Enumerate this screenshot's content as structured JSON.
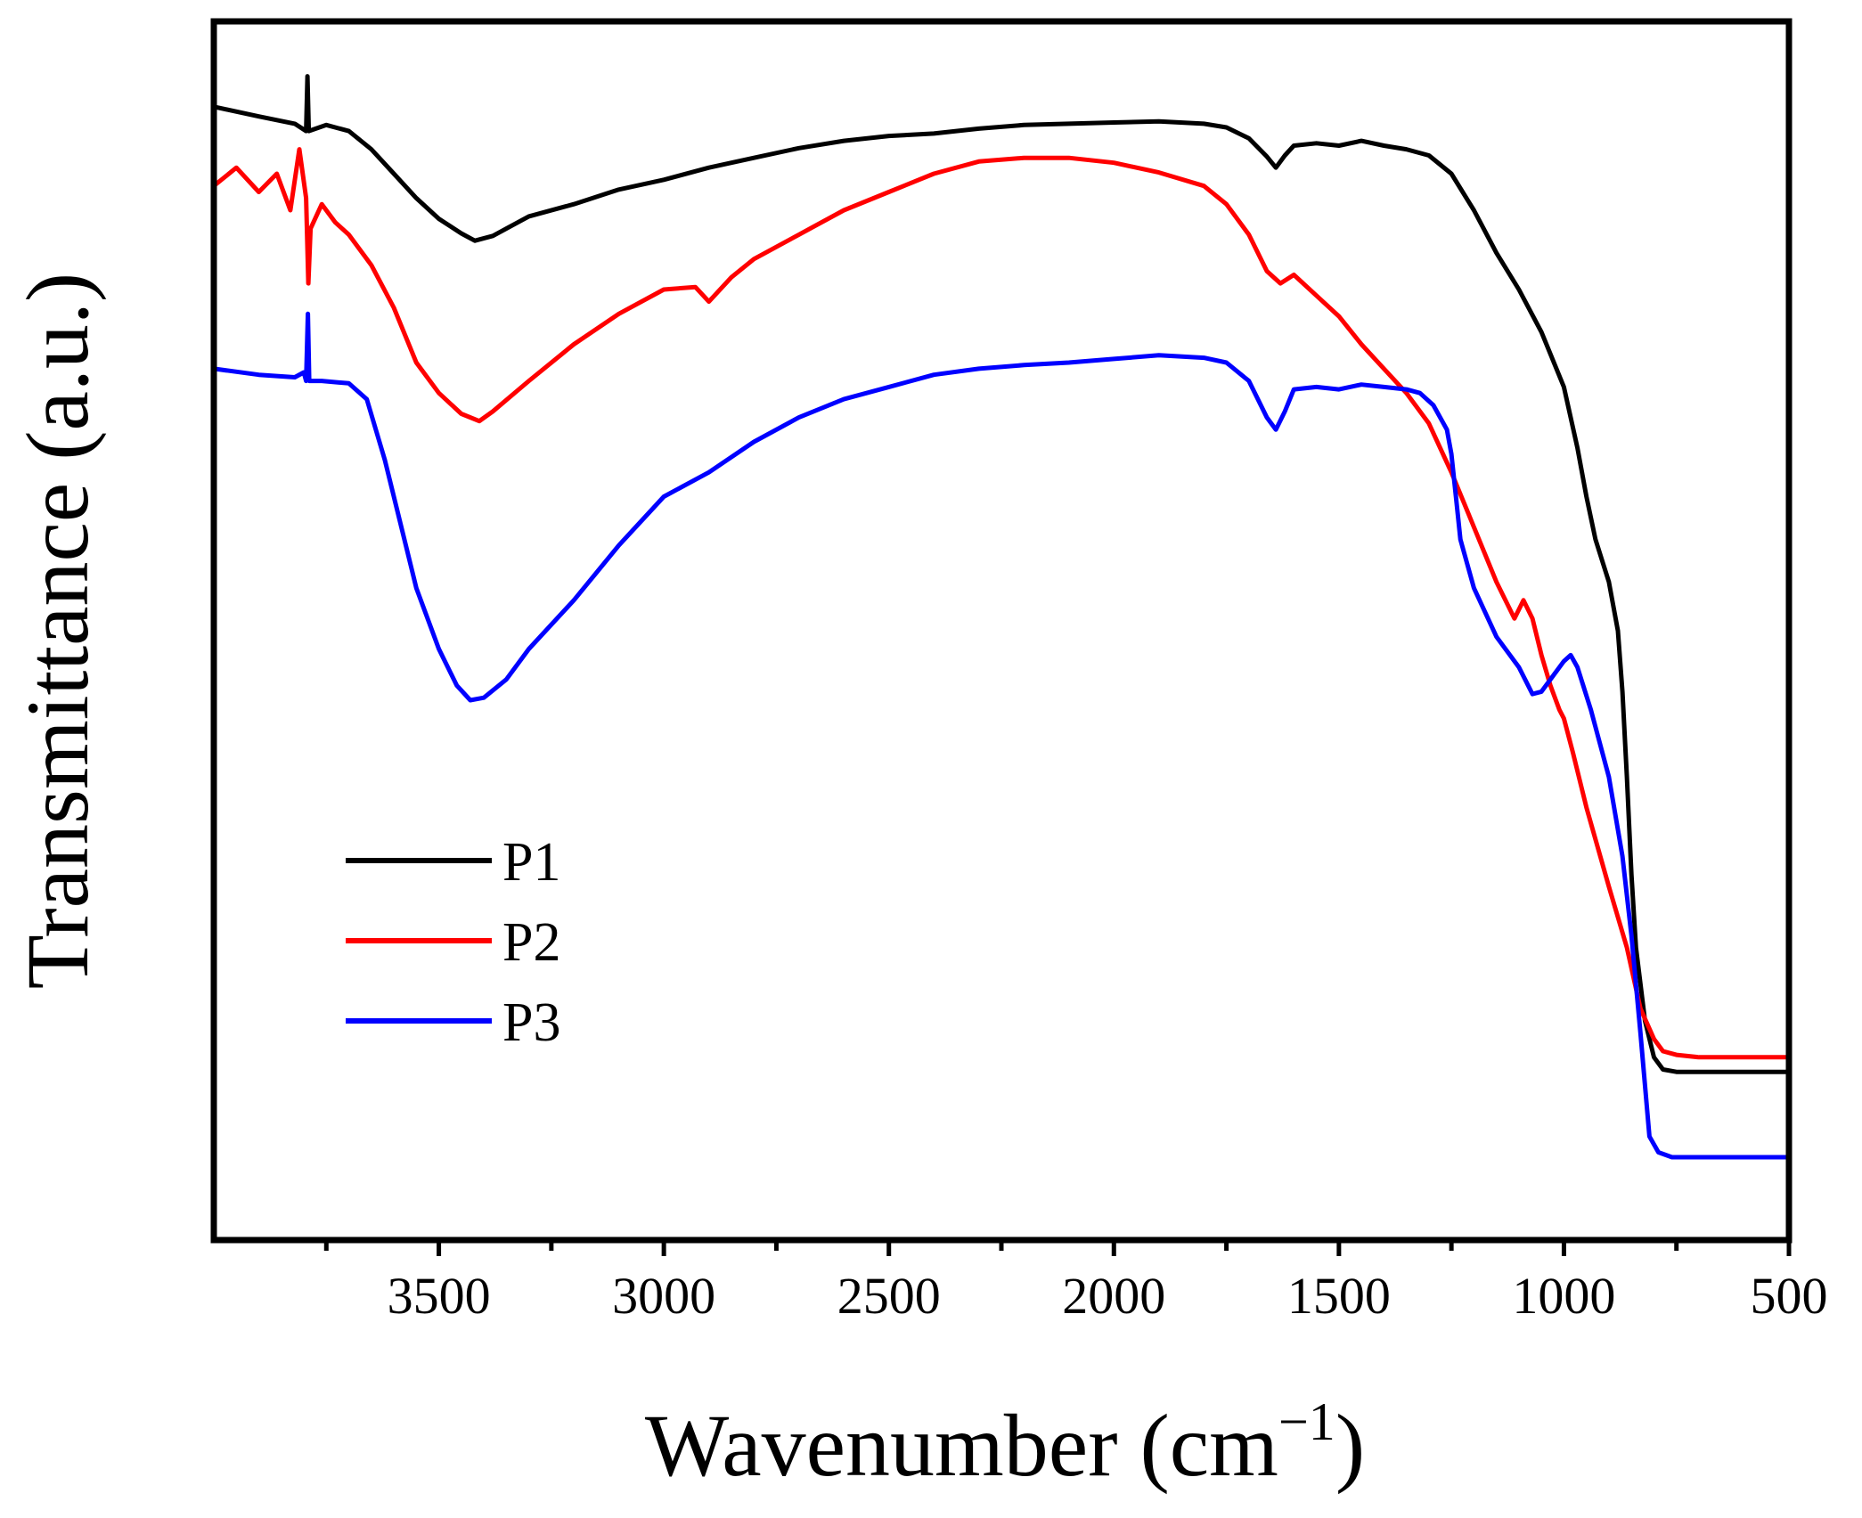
{
  "chart_data": {
    "type": "line",
    "title": "",
    "xlabel": "Wavenumber (cm",
    "xlabel_superscript": "−1",
    "xlabel_close": ")",
    "ylabel": "Transmittance (a.u.)",
    "xlim": [
      4000,
      500
    ],
    "ylim": [
      0,
      100
    ],
    "x_inverted": true,
    "y_ticks_shown": false,
    "grid": false,
    "legend_position": "lower-left",
    "x_ticks": [
      3500,
      3000,
      2500,
      2000,
      1500,
      1000,
      500
    ],
    "x_tick_labels": [
      "3500",
      "3000",
      "2500",
      "2000",
      "1500",
      "1000",
      "500"
    ],
    "series": [
      {
        "name": "P1",
        "color": "#000000",
        "points": [
          [
            4000,
            93.0
          ],
          [
            3900,
            92.2
          ],
          [
            3820,
            91.6
          ],
          [
            3795,
            91.0
          ],
          [
            3792,
            95.5
          ],
          [
            3789,
            91.0
          ],
          [
            3750,
            91.5
          ],
          [
            3700,
            91.0
          ],
          [
            3650,
            89.5
          ],
          [
            3600,
            87.5
          ],
          [
            3550,
            85.5
          ],
          [
            3500,
            83.8
          ],
          [
            3450,
            82.6
          ],
          [
            3420,
            82.0
          ],
          [
            3380,
            82.4
          ],
          [
            3300,
            84.0
          ],
          [
            3200,
            85.0
          ],
          [
            3100,
            86.2
          ],
          [
            3000,
            87.0
          ],
          [
            2900,
            88.0
          ],
          [
            2800,
            88.8
          ],
          [
            2700,
            89.6
          ],
          [
            2600,
            90.2
          ],
          [
            2500,
            90.6
          ],
          [
            2400,
            90.8
          ],
          [
            2300,
            91.2
          ],
          [
            2200,
            91.5
          ],
          [
            2100,
            91.6
          ],
          [
            2000,
            91.7
          ],
          [
            1900,
            91.8
          ],
          [
            1800,
            91.6
          ],
          [
            1750,
            91.3
          ],
          [
            1700,
            90.4
          ],
          [
            1660,
            88.9
          ],
          [
            1640,
            88.0
          ],
          [
            1620,
            89.0
          ],
          [
            1600,
            89.8
          ],
          [
            1550,
            90.0
          ],
          [
            1500,
            89.8
          ],
          [
            1450,
            90.2
          ],
          [
            1400,
            89.8
          ],
          [
            1350,
            89.5
          ],
          [
            1300,
            89.0
          ],
          [
            1250,
            87.5
          ],
          [
            1200,
            84.5
          ],
          [
            1150,
            81.0
          ],
          [
            1100,
            78.0
          ],
          [
            1050,
            74.5
          ],
          [
            1000,
            70.0
          ],
          [
            970,
            65.0
          ],
          [
            950,
            61.0
          ],
          [
            930,
            57.5
          ],
          [
            900,
            54.0
          ],
          [
            880,
            50.0
          ],
          [
            870,
            45.0
          ],
          [
            860,
            38.0
          ],
          [
            850,
            30.0
          ],
          [
            840,
            24.0
          ],
          [
            820,
            18.0
          ],
          [
            800,
            15.0
          ],
          [
            780,
            14.0
          ],
          [
            750,
            13.8
          ],
          [
            700,
            13.8
          ],
          [
            600,
            13.8
          ],
          [
            500,
            13.8
          ]
        ]
      },
      {
        "name": "P2",
        "color": "#ff0000",
        "points": [
          [
            4000,
            86.5
          ],
          [
            3950,
            88.0
          ],
          [
            3900,
            86.0
          ],
          [
            3860,
            87.5
          ],
          [
            3830,
            84.5
          ],
          [
            3810,
            89.5
          ],
          [
            3795,
            85.5
          ],
          [
            3790,
            78.5
          ],
          [
            3785,
            83.0
          ],
          [
            3760,
            85.0
          ],
          [
            3730,
            83.5
          ],
          [
            3700,
            82.5
          ],
          [
            3650,
            80.0
          ],
          [
            3600,
            76.5
          ],
          [
            3550,
            72.0
          ],
          [
            3500,
            69.5
          ],
          [
            3450,
            67.8
          ],
          [
            3410,
            67.2
          ],
          [
            3380,
            68.0
          ],
          [
            3300,
            70.5
          ],
          [
            3200,
            73.5
          ],
          [
            3100,
            76.0
          ],
          [
            3000,
            78.0
          ],
          [
            2930,
            78.2
          ],
          [
            2900,
            77.0
          ],
          [
            2850,
            79.0
          ],
          [
            2800,
            80.5
          ],
          [
            2700,
            82.5
          ],
          [
            2600,
            84.5
          ],
          [
            2500,
            86.0
          ],
          [
            2400,
            87.5
          ],
          [
            2300,
            88.5
          ],
          [
            2200,
            88.8
          ],
          [
            2100,
            88.8
          ],
          [
            2000,
            88.4
          ],
          [
            1900,
            87.6
          ],
          [
            1800,
            86.5
          ],
          [
            1750,
            85.0
          ],
          [
            1700,
            82.5
          ],
          [
            1660,
            79.5
          ],
          [
            1630,
            78.5
          ],
          [
            1600,
            79.2
          ],
          [
            1550,
            77.5
          ],
          [
            1500,
            75.8
          ],
          [
            1450,
            73.5
          ],
          [
            1400,
            71.5
          ],
          [
            1350,
            69.5
          ],
          [
            1300,
            67.0
          ],
          [
            1250,
            63.0
          ],
          [
            1200,
            58.5
          ],
          [
            1150,
            54.0
          ],
          [
            1110,
            51.0
          ],
          [
            1090,
            52.5
          ],
          [
            1070,
            51.0
          ],
          [
            1050,
            48.0
          ],
          [
            1030,
            45.5
          ],
          [
            1010,
            43.5
          ],
          [
            1000,
            42.8
          ],
          [
            980,
            40.0
          ],
          [
            950,
            35.5
          ],
          [
            900,
            29.0
          ],
          [
            860,
            24.0
          ],
          [
            830,
            19.0
          ],
          [
            800,
            16.5
          ],
          [
            780,
            15.5
          ],
          [
            750,
            15.2
          ],
          [
            700,
            15.0
          ],
          [
            600,
            15.0
          ],
          [
            500,
            15.0
          ]
        ]
      },
      {
        "name": "P3",
        "color": "#0000ff",
        "points": [
          [
            4000,
            71.5
          ],
          [
            3900,
            71.0
          ],
          [
            3820,
            70.8
          ],
          [
            3800,
            71.2
          ],
          [
            3795,
            70.5
          ],
          [
            3791,
            76.0
          ],
          [
            3788,
            70.5
          ],
          [
            3760,
            70.5
          ],
          [
            3700,
            70.3
          ],
          [
            3660,
            69.0
          ],
          [
            3620,
            64.0
          ],
          [
            3580,
            58.0
          ],
          [
            3550,
            53.5
          ],
          [
            3500,
            48.5
          ],
          [
            3460,
            45.5
          ],
          [
            3430,
            44.3
          ],
          [
            3400,
            44.5
          ],
          [
            3350,
            46.0
          ],
          [
            3300,
            48.5
          ],
          [
            3200,
            52.5
          ],
          [
            3100,
            57.0
          ],
          [
            3000,
            61.0
          ],
          [
            2900,
            63.0
          ],
          [
            2800,
            65.5
          ],
          [
            2700,
            67.5
          ],
          [
            2600,
            69.0
          ],
          [
            2500,
            70.0
          ],
          [
            2400,
            71.0
          ],
          [
            2300,
            71.5
          ],
          [
            2200,
            71.8
          ],
          [
            2100,
            72.0
          ],
          [
            2000,
            72.3
          ],
          [
            1900,
            72.6
          ],
          [
            1800,
            72.4
          ],
          [
            1750,
            72.0
          ],
          [
            1700,
            70.5
          ],
          [
            1660,
            67.5
          ],
          [
            1640,
            66.5
          ],
          [
            1620,
            68.0
          ],
          [
            1600,
            69.8
          ],
          [
            1550,
            70.0
          ],
          [
            1500,
            69.8
          ],
          [
            1450,
            70.2
          ],
          [
            1400,
            70.0
          ],
          [
            1350,
            69.8
          ],
          [
            1320,
            69.5
          ],
          [
            1290,
            68.5
          ],
          [
            1260,
            66.5
          ],
          [
            1250,
            64.5
          ],
          [
            1240,
            61.0
          ],
          [
            1230,
            57.5
          ],
          [
            1200,
            53.5
          ],
          [
            1150,
            49.5
          ],
          [
            1100,
            47.0
          ],
          [
            1070,
            44.8
          ],
          [
            1050,
            45.0
          ],
          [
            1020,
            46.5
          ],
          [
            1000,
            47.5
          ],
          [
            985,
            48.0
          ],
          [
            970,
            47.0
          ],
          [
            940,
            43.5
          ],
          [
            900,
            38.0
          ],
          [
            870,
            31.5
          ],
          [
            850,
            25.0
          ],
          [
            830,
            17.0
          ],
          [
            810,
            8.5
          ],
          [
            790,
            7.2
          ],
          [
            760,
            6.8
          ],
          [
            700,
            6.8
          ],
          [
            600,
            6.8
          ],
          [
            500,
            6.8
          ]
        ]
      }
    ]
  }
}
